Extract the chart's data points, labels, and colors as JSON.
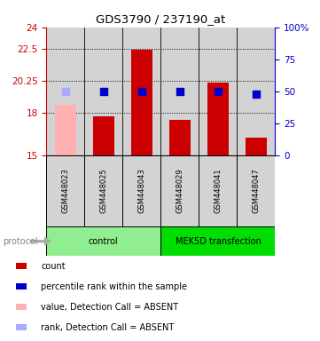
{
  "title": "GDS3790 / 237190_at",
  "samples": [
    "GSM448023",
    "GSM448025",
    "GSM448043",
    "GSM448029",
    "GSM448041",
    "GSM448047"
  ],
  "bar_values": [
    18.55,
    17.72,
    22.42,
    17.48,
    20.12,
    16.22
  ],
  "bar_colors": [
    "#ffb0b0",
    "#cc0000",
    "#cc0000",
    "#cc0000",
    "#cc0000",
    "#cc0000"
  ],
  "dot_values": [
    50,
    50,
    50,
    50,
    50,
    48
  ],
  "dot_colors": [
    "#aaaaff",
    "#0000cc",
    "#0000cc",
    "#0000cc",
    "#0000cc",
    "#0000cc"
  ],
  "absent_flags": [
    true,
    false,
    false,
    false,
    false,
    false
  ],
  "ylim_left": [
    15,
    24
  ],
  "ylim_right": [
    0,
    100
  ],
  "yticks_left": [
    15,
    18,
    20.25,
    22.5,
    24
  ],
  "ytick_labels_left": [
    "15",
    "18",
    "20.25",
    "22.5",
    "24"
  ],
  "yticks_right": [
    0,
    25,
    50,
    75,
    100
  ],
  "ytick_labels_right": [
    "0",
    "25",
    "50",
    "75",
    "100%"
  ],
  "hlines": [
    18,
    20.25,
    22.5
  ],
  "groups": [
    {
      "label": "control",
      "indices": [
        0,
        1,
        2
      ],
      "color": "#90ee90"
    },
    {
      "label": "MEK5D transfection",
      "indices": [
        3,
        4,
        5
      ],
      "color": "#00dd00"
    }
  ],
  "protocol_label": "protocol",
  "legend_items": [
    {
      "label": "count",
      "color": "#cc0000"
    },
    {
      "label": "percentile rank within the sample",
      "color": "#0000cc"
    },
    {
      "label": "value, Detection Call = ABSENT",
      "color": "#ffb0b0"
    },
    {
      "label": "rank, Detection Call = ABSENT",
      "color": "#aaaaff"
    }
  ],
  "bar_width": 0.55,
  "dot_size": 35,
  "background_color": "#ffffff",
  "left_axis_color": "#cc0000",
  "right_axis_color": "#0000cc",
  "sample_box_color": "#d3d3d3",
  "col_sep_color": "#888888"
}
